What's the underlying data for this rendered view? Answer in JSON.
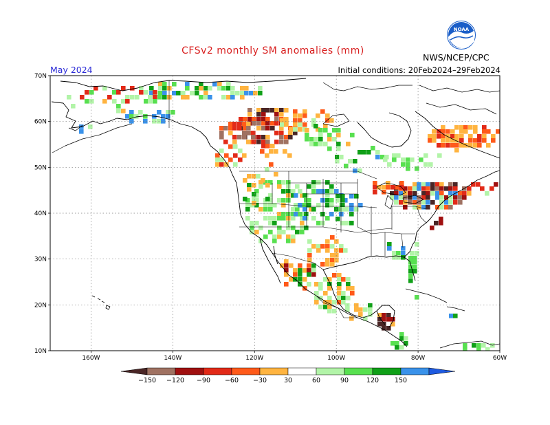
{
  "header": {
    "title": "CFSv2 monthly SM anomalies (mm)",
    "month": "May 2024",
    "initial_conditions": "Initial conditions: 20Feb2024–29Feb2024",
    "agency": "NWS/NCEP/CPC",
    "logo_text": "NOAA"
  },
  "map": {
    "lon_range": [
      -170,
      -60
    ],
    "lat_range": [
      10,
      70
    ],
    "lat_labels": [
      "70N",
      "60N",
      "50N",
      "40N",
      "30N",
      "20N",
      "10N"
    ],
    "lon_labels": [
      "160W",
      "140W",
      "120W",
      "100W",
      "80W",
      "60W"
    ]
  },
  "colorbar": {
    "labels": [
      "−150",
      "−120",
      "−90",
      "−60",
      "−30",
      "30",
      "60",
      "90",
      "120",
      "150"
    ],
    "colors": [
      "#4a2626",
      "#a07262",
      "#a01010",
      "#e22a18",
      "#ff5a1a",
      "#ffb440",
      "#ffffff",
      "#b2f4a8",
      "#58e050",
      "#10a018",
      "#3a92ea",
      "#1e5ae0"
    ]
  },
  "colors": {
    "title": "#d81e1e",
    "month": "#2b2bd6",
    "noaa_blue": "#1a5ec8"
  }
}
